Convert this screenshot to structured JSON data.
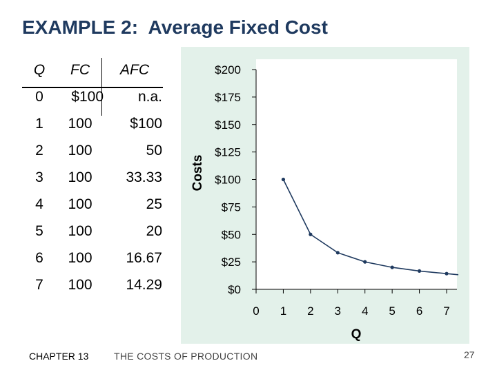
{
  "slide": {
    "title": "EXAMPLE 2:  Average Fixed Cost",
    "chapter": "CHAPTER 13",
    "chapter_title": "THE COSTS OF PRODUCTION",
    "page_number": "27"
  },
  "table": {
    "headers": [
      "Q",
      "FC",
      "AFC"
    ],
    "rows": [
      [
        "0",
        "$100",
        "n.a."
      ],
      [
        "1",
        "100",
        "$100"
      ],
      [
        "2",
        "100",
        "50"
      ],
      [
        "3",
        "100",
        "33.33"
      ],
      [
        "4",
        "100",
        "25"
      ],
      [
        "5",
        "100",
        "20"
      ],
      [
        "6",
        "100",
        "16.67"
      ],
      [
        "7",
        "100",
        "14.29"
      ]
    ]
  },
  "chart_data": {
    "type": "line",
    "title": "",
    "xlabel": "Q",
    "ylabel": "Costs",
    "x": [
      1,
      2,
      3,
      4,
      5,
      6,
      7
    ],
    "series": [
      {
        "values": [
          100,
          50,
          33.33,
          25,
          20,
          16.67,
          14.29
        ]
      }
    ],
    "x_ticks": [
      "0",
      "1",
      "2",
      "3",
      "4",
      "5",
      "6",
      "7"
    ],
    "y_ticks": [
      "$0",
      "$25",
      "$50",
      "$75",
      "$100",
      "$125",
      "$150",
      "$175",
      "$200"
    ],
    "xlim": [
      0,
      7
    ],
    "ylim": [
      0,
      200
    ],
    "grid": false,
    "line_color": "#1f3a5f",
    "panel_color": "#e3f1ea",
    "plot_color": "#ffffff"
  }
}
